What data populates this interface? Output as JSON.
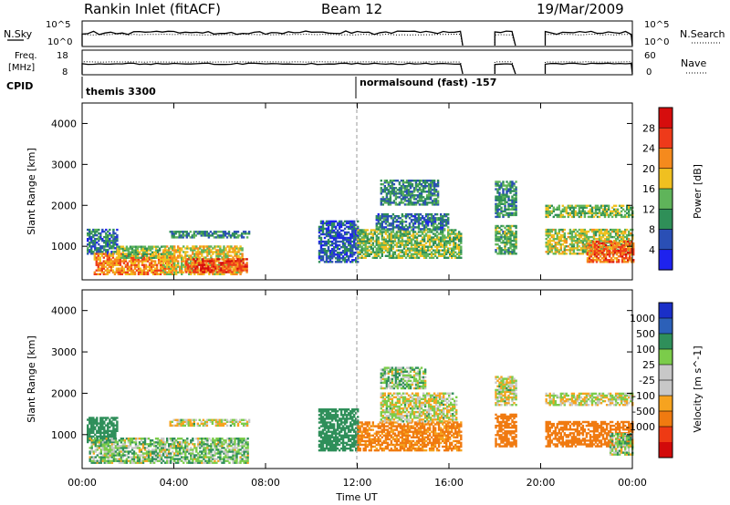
{
  "header": {
    "station": "Rankin Inlet (fitACF)",
    "beam": "Beam 12",
    "date": "19/Mar/2009"
  },
  "noise_panel": {
    "left_label": "N.Sky",
    "left_ticks": [
      "10^5",
      "10^0"
    ],
    "right_label": "N.Search",
    "right_ticks": [
      "10^5",
      "10^0"
    ]
  },
  "freq_panel": {
    "left_label_1": "Freq.",
    "left_label_2": "[MHz]",
    "left_ticks": [
      "18",
      "8"
    ],
    "right_label": "Nave",
    "right_ticks": [
      "60",
      "0"
    ]
  },
  "cpid": {
    "label": "CPID",
    "modes": [
      "themis 3300",
      "normalsound (fast) -157"
    ]
  },
  "axes": {
    "ylabel": "Slant Range [km]",
    "y_ticks": [
      "1000",
      "2000",
      "3000",
      "4000"
    ],
    "x_ticks": [
      "00:00",
      "04:00",
      "08:00",
      "12:00",
      "16:00",
      "20:00",
      "00:00"
    ],
    "xlabel": "Time UT"
  },
  "colors": {
    "power": [
      "#1e22ee",
      "#2a4fb5",
      "#2f8f58",
      "#5fb45a",
      "#f0c020",
      "#f58a1d",
      "#ee3a1a",
      "#d60d0d"
    ],
    "velocity": [
      "#1a2fc8",
      "#2c60b8",
      "#2f8f5a",
      "#7bcc4a",
      "#c8c8c8",
      "#c8c8c8",
      "#f6a31f",
      "#f07a10",
      "#ee3a14",
      "#d20a0a"
    ]
  },
  "chart_data": [
    {
      "type": "heatmap",
      "panel": "power",
      "xlabel": "Time UT",
      "ylabel": "Slant Range [km]",
      "xlim_hours": [
        0,
        24
      ],
      "ylim_km": [
        180,
        4500
      ],
      "colorbar": {
        "label": "Power [dB]",
        "ticks": [
          "28",
          "24",
          "20",
          "16",
          "12",
          "8",
          "4"
        ],
        "range": [
          0,
          30
        ]
      },
      "regions": [
        {
          "t": [
            0.2,
            1.5
          ],
          "r": [
            800,
            1400
          ],
          "value": 8
        },
        {
          "t": [
            0.5,
            4.0
          ],
          "r": [
            300,
            800
          ],
          "value": 22
        },
        {
          "t": [
            1.5,
            3.5
          ],
          "r": [
            700,
            1000
          ],
          "value": 14
        },
        {
          "t": [
            3.5,
            7.0
          ],
          "r": [
            300,
            1000
          ],
          "value": 18
        },
        {
          "t": [
            4.5,
            7.2
          ],
          "r": [
            350,
            700
          ],
          "value": 26
        },
        {
          "t": [
            3.8,
            7.3
          ],
          "r": [
            1200,
            1350
          ],
          "value": 10
        },
        {
          "t": [
            10.3,
            12.0
          ],
          "r": [
            600,
            1600
          ],
          "value": 6
        },
        {
          "t": [
            12.0,
            16.5
          ],
          "r": [
            700,
            1400
          ],
          "value": 14
        },
        {
          "t": [
            12.8,
            16.0
          ],
          "r": [
            1400,
            1800
          ],
          "value": 8
        },
        {
          "t": [
            13.0,
            15.5
          ],
          "r": [
            2000,
            2600
          ],
          "value": 10
        },
        {
          "t": [
            18.0,
            18.9
          ],
          "r": [
            1700,
            2600
          ],
          "value": 10
        },
        {
          "t": [
            18.0,
            18.9
          ],
          "r": [
            800,
            1500
          ],
          "value": 12
        },
        {
          "t": [
            20.2,
            24.0
          ],
          "r": [
            1700,
            2000
          ],
          "value": 14
        },
        {
          "t": [
            20.2,
            24.0
          ],
          "r": [
            800,
            1400
          ],
          "value": 16
        },
        {
          "t": [
            22.0,
            24.0
          ],
          "r": [
            600,
            1100
          ],
          "value": 24
        }
      ]
    },
    {
      "type": "heatmap",
      "panel": "velocity",
      "xlabel": "Time UT",
      "ylabel": "Slant Range [km]",
      "xlim_hours": [
        0,
        24
      ],
      "ylim_km": [
        180,
        4500
      ],
      "colorbar": {
        "label": "Velocity [m s^-1]",
        "ticks": [
          "1000",
          "500",
          "100",
          "25",
          "-25",
          "-100",
          "-500",
          "-1000"
        ],
        "range": [
          -1000,
          1000
        ]
      },
      "regions": [
        {
          "t": [
            0.2,
            1.5
          ],
          "r": [
            800,
            1400
          ],
          "value": 300
        },
        {
          "t": [
            0.3,
            7.2
          ],
          "r": [
            300,
            900
          ],
          "value": 60
        },
        {
          "t": [
            3.8,
            7.3
          ],
          "r": [
            1200,
            1350
          ],
          "value": 10
        },
        {
          "t": [
            10.3,
            12.0
          ],
          "r": [
            600,
            1600
          ],
          "value": 200
        },
        {
          "t": [
            12.0,
            16.5
          ],
          "r": [
            600,
            1300
          ],
          "value": -150
        },
        {
          "t": [
            13.0,
            16.3
          ],
          "r": [
            1300,
            2000
          ],
          "value": 10
        },
        {
          "t": [
            13.0,
            15.0
          ],
          "r": [
            2100,
            2600
          ],
          "value": 60
        },
        {
          "t": [
            18.0,
            18.9
          ],
          "r": [
            700,
            1500
          ],
          "value": -300
        },
        {
          "t": [
            18.0,
            18.9
          ],
          "r": [
            1700,
            2400
          ],
          "value": 10
        },
        {
          "t": [
            20.2,
            24.0
          ],
          "r": [
            1700,
            2000
          ],
          "value": 0
        },
        {
          "t": [
            20.2,
            24.0
          ],
          "r": [
            700,
            1300
          ],
          "value": -200
        },
        {
          "t": [
            23.0,
            24.0
          ],
          "r": [
            500,
            1000
          ],
          "value": 60
        }
      ]
    }
  ]
}
